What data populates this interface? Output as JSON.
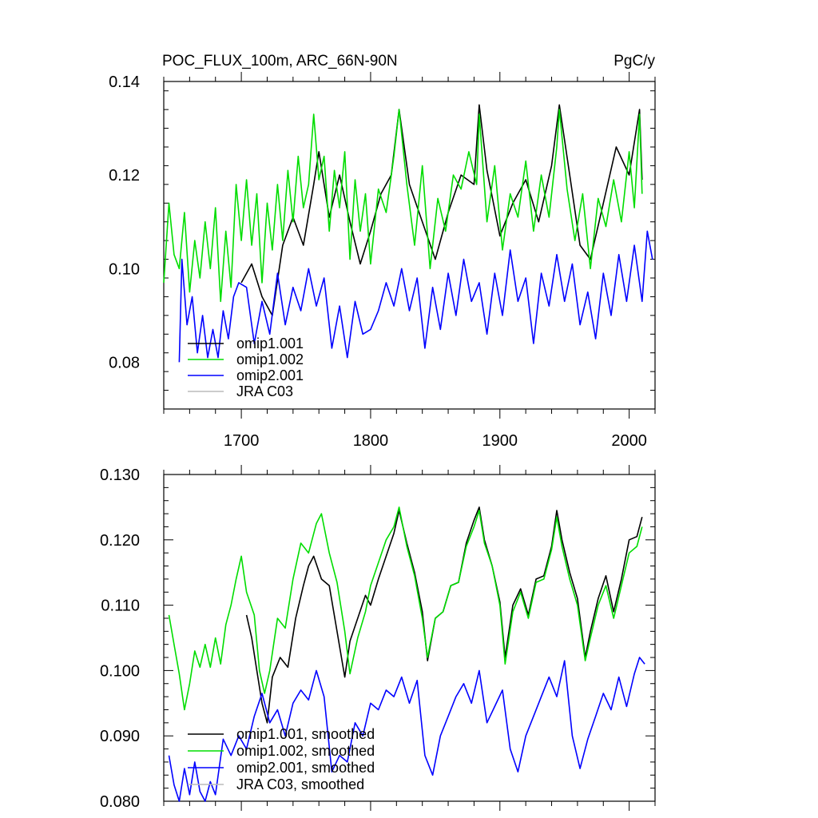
{
  "figure_title": "POC_FLUX_100m, ARC_66N-90N",
  "units": "PgC/y",
  "chart_data": [
    {
      "type": "line",
      "xlim": [
        1640,
        2020
      ],
      "ylim": [
        0.07,
        0.14
      ],
      "y_major_ticks": [
        0.08,
        0.1,
        0.12,
        0.14
      ],
      "y_tick_labels": [
        "0.08",
        "0.10",
        "0.12",
        "0.14"
      ],
      "x_tick_labels": [
        "1700",
        "1800",
        "1900",
        "2000"
      ],
      "x_major_ticks": [
        1700,
        1800,
        1900,
        2000
      ],
      "legend_position": "lower-left",
      "series": [
        {
          "name": "omip1.001",
          "color": "#000000",
          "x": [
            1700,
            1708,
            1716,
            1724,
            1732,
            1740,
            1748,
            1756,
            1760,
            1768,
            1776,
            1784,
            1792,
            1800,
            1808,
            1816,
            1822,
            1830,
            1840,
            1850,
            1860,
            1870,
            1880,
            1884,
            1890,
            1900,
            1910,
            1920,
            1930,
            1940,
            1946,
            1954,
            1962,
            1970,
            1980,
            1990,
            2000,
            2008,
            2010
          ],
          "y": [
            0.097,
            0.101,
            0.094,
            0.09,
            0.105,
            0.111,
            0.105,
            0.118,
            0.125,
            0.111,
            0.12,
            0.11,
            0.101,
            0.108,
            0.116,
            0.12,
            0.134,
            0.118,
            0.11,
            0.102,
            0.112,
            0.12,
            0.118,
            0.135,
            0.121,
            0.107,
            0.114,
            0.119,
            0.11,
            0.122,
            0.135,
            0.12,
            0.105,
            0.102,
            0.114,
            0.126,
            0.12,
            0.134,
            0.119
          ]
        },
        {
          "name": "omip1.002",
          "color": "#00dd00",
          "x": [
            1640,
            1644,
            1648,
            1652,
            1656,
            1660,
            1664,
            1668,
            1672,
            1676,
            1680,
            1684,
            1688,
            1692,
            1696,
            1700,
            1704,
            1708,
            1712,
            1716,
            1720,
            1724,
            1728,
            1732,
            1736,
            1740,
            1744,
            1748,
            1752,
            1756,
            1760,
            1764,
            1768,
            1772,
            1776,
            1780,
            1784,
            1788,
            1792,
            1796,
            1800,
            1806,
            1812,
            1818,
            1822,
            1828,
            1834,
            1840,
            1846,
            1852,
            1858,
            1864,
            1870,
            1876,
            1882,
            1884,
            1890,
            1896,
            1902,
            1908,
            1914,
            1920,
            1926,
            1932,
            1938,
            1944,
            1946,
            1952,
            1958,
            1964,
            1970,
            1976,
            1982,
            1988,
            1994,
            2000,
            2004,
            2008,
            2010
          ],
          "y": [
            0.097,
            0.114,
            0.103,
            0.1,
            0.112,
            0.095,
            0.106,
            0.098,
            0.11,
            0.1,
            0.113,
            0.093,
            0.108,
            0.096,
            0.118,
            0.106,
            0.119,
            0.105,
            0.116,
            0.097,
            0.114,
            0.104,
            0.118,
            0.106,
            0.121,
            0.11,
            0.124,
            0.113,
            0.118,
            0.133,
            0.119,
            0.124,
            0.108,
            0.121,
            0.113,
            0.125,
            0.102,
            0.119,
            0.108,
            0.116,
            0.101,
            0.117,
            0.112,
            0.124,
            0.134,
            0.118,
            0.105,
            0.122,
            0.1,
            0.115,
            0.108,
            0.12,
            0.117,
            0.125,
            0.118,
            0.133,
            0.11,
            0.122,
            0.104,
            0.116,
            0.111,
            0.123,
            0.108,
            0.12,
            0.111,
            0.126,
            0.134,
            0.117,
            0.106,
            0.116,
            0.1,
            0.115,
            0.109,
            0.119,
            0.11,
            0.125,
            0.113,
            0.133,
            0.116
          ]
        },
        {
          "name": "omip2.001",
          "color": "#0000ff",
          "x": [
            1652,
            1654,
            1658,
            1662,
            1666,
            1670,
            1674,
            1678,
            1682,
            1686,
            1690,
            1694,
            1698,
            1704,
            1710,
            1716,
            1722,
            1728,
            1734,
            1740,
            1746,
            1752,
            1758,
            1764,
            1770,
            1776,
            1782,
            1788,
            1794,
            1800,
            1806,
            1812,
            1818,
            1824,
            1830,
            1836,
            1842,
            1848,
            1854,
            1860,
            1866,
            1872,
            1878,
            1884,
            1890,
            1896,
            1902,
            1908,
            1914,
            1920,
            1926,
            1932,
            1938,
            1944,
            1950,
            1956,
            1962,
            1968,
            1974,
            1980,
            1986,
            1992,
            1998,
            2004,
            2010,
            2014,
            2018
          ],
          "y": [
            0.08,
            0.102,
            0.088,
            0.094,
            0.082,
            0.09,
            0.081,
            0.087,
            0.081,
            0.091,
            0.085,
            0.094,
            0.097,
            0.096,
            0.084,
            0.093,
            0.086,
            0.099,
            0.088,
            0.096,
            0.091,
            0.1,
            0.092,
            0.098,
            0.083,
            0.092,
            0.081,
            0.093,
            0.086,
            0.087,
            0.091,
            0.097,
            0.092,
            0.1,
            0.091,
            0.098,
            0.083,
            0.096,
            0.087,
            0.099,
            0.09,
            0.102,
            0.093,
            0.097,
            0.086,
            0.099,
            0.09,
            0.104,
            0.093,
            0.098,
            0.084,
            0.099,
            0.092,
            0.103,
            0.093,
            0.101,
            0.088,
            0.095,
            0.085,
            0.099,
            0.09,
            0.103,
            0.093,
            0.105,
            0.093,
            0.108,
            0.102
          ]
        },
        {
          "name": "JRA C03",
          "color": "#bbbbbb",
          "x": [],
          "y": []
        }
      ]
    },
    {
      "type": "line",
      "xlim": [
        1640,
        2020
      ],
      "ylim": [
        0.08,
        0.13
      ],
      "y_major_ticks": [
        0.08,
        0.09,
        0.1,
        0.11,
        0.12,
        0.13
      ],
      "y_tick_labels": [
        "0.080",
        "0.090",
        "0.100",
        "0.110",
        "0.120",
        "0.130"
      ],
      "x_major_ticks": [
        1700,
        1800,
        1900,
        2000
      ],
      "legend_position": "lower-left",
      "series": [
        {
          "name": "omip1.001, smoothed",
          "color": "#000000",
          "x": [
            1704,
            1708,
            1712,
            1716,
            1720,
            1724,
            1730,
            1736,
            1742,
            1748,
            1752,
            1756,
            1762,
            1768,
            1774,
            1780,
            1784,
            1790,
            1796,
            1800,
            1806,
            1812,
            1818,
            1822,
            1828,
            1834,
            1840,
            1844,
            1850,
            1856,
            1862,
            1868,
            1874,
            1880,
            1884,
            1888,
            1894,
            1900,
            1904,
            1910,
            1916,
            1922,
            1928,
            1934,
            1940,
            1944,
            1948,
            1954,
            1960,
            1966,
            1970,
            1976,
            1982,
            1988,
            1994,
            2000,
            2006,
            2010
          ],
          "y": [
            0.1085,
            0.105,
            0.1,
            0.095,
            0.092,
            0.099,
            0.102,
            0.1005,
            0.108,
            0.113,
            0.116,
            0.1175,
            0.114,
            0.113,
            0.106,
            0.099,
            0.1045,
            0.108,
            0.1115,
            0.11,
            0.114,
            0.1175,
            0.121,
            0.1245,
            0.1195,
            0.115,
            0.109,
            0.1015,
            0.108,
            0.109,
            0.113,
            0.1135,
            0.1195,
            0.123,
            0.125,
            0.12,
            0.116,
            0.1105,
            0.102,
            0.11,
            0.1125,
            0.1085,
            0.114,
            0.1145,
            0.119,
            0.1245,
            0.12,
            0.115,
            0.111,
            0.102,
            0.106,
            0.111,
            0.1145,
            0.109,
            0.114,
            0.12,
            0.1205,
            0.1235
          ]
        },
        {
          "name": "omip1.002, smoothed",
          "color": "#00dd00",
          "x": [
            1644,
            1648,
            1652,
            1656,
            1660,
            1664,
            1668,
            1672,
            1676,
            1680,
            1684,
            1688,
            1692,
            1696,
            1700,
            1704,
            1710,
            1714,
            1718,
            1722,
            1728,
            1734,
            1740,
            1746,
            1752,
            1758,
            1762,
            1768,
            1774,
            1780,
            1784,
            1790,
            1796,
            1800,
            1806,
            1812,
            1818,
            1822,
            1828,
            1834,
            1840,
            1844,
            1850,
            1856,
            1862,
            1868,
            1874,
            1880,
            1884,
            1888,
            1894,
            1900,
            1904,
            1910,
            1916,
            1922,
            1928,
            1934,
            1940,
            1944,
            1948,
            1954,
            1960,
            1966,
            1970,
            1976,
            1982,
            1988,
            1994,
            2000,
            2006,
            2010
          ],
          "y": [
            0.1085,
            0.104,
            0.0995,
            0.094,
            0.098,
            0.103,
            0.1005,
            0.104,
            0.1005,
            0.105,
            0.101,
            0.107,
            0.11,
            0.114,
            0.1175,
            0.112,
            0.1085,
            0.1,
            0.0965,
            0.1,
            0.108,
            0.1065,
            0.114,
            0.1195,
            0.118,
            0.1225,
            0.124,
            0.118,
            0.1135,
            0.106,
            0.0995,
            0.105,
            0.109,
            0.113,
            0.1165,
            0.12,
            0.122,
            0.125,
            0.119,
            0.1145,
            0.108,
            0.102,
            0.108,
            0.109,
            0.113,
            0.1135,
            0.119,
            0.122,
            0.1245,
            0.1195,
            0.116,
            0.11,
            0.101,
            0.109,
            0.112,
            0.108,
            0.1135,
            0.114,
            0.1185,
            0.1235,
            0.119,
            0.114,
            0.11,
            0.1015,
            0.105,
            0.11,
            0.113,
            0.108,
            0.113,
            0.118,
            0.119,
            0.122
          ]
        },
        {
          "name": "omip2.001, smoothed",
          "color": "#0000ff",
          "x": [
            1644,
            1648,
            1652,
            1656,
            1660,
            1664,
            1668,
            1672,
            1676,
            1680,
            1686,
            1692,
            1698,
            1704,
            1710,
            1716,
            1722,
            1728,
            1734,
            1740,
            1746,
            1752,
            1758,
            1764,
            1770,
            1776,
            1782,
            1788,
            1794,
            1800,
            1806,
            1812,
            1818,
            1824,
            1830,
            1836,
            1842,
            1848,
            1854,
            1860,
            1866,
            1872,
            1878,
            1884,
            1890,
            1896,
            1902,
            1908,
            1914,
            1920,
            1926,
            1932,
            1938,
            1944,
            1950,
            1956,
            1962,
            1968,
            1974,
            1980,
            1986,
            1992,
            1998,
            2004,
            2008,
            2012
          ],
          "y": [
            0.087,
            0.0825,
            0.08,
            0.085,
            0.081,
            0.086,
            0.0815,
            0.08,
            0.083,
            0.081,
            0.0895,
            0.087,
            0.09,
            0.088,
            0.093,
            0.0965,
            0.092,
            0.094,
            0.09,
            0.095,
            0.097,
            0.0955,
            0.1,
            0.096,
            0.0845,
            0.087,
            0.086,
            0.092,
            0.09,
            0.095,
            0.094,
            0.097,
            0.096,
            0.099,
            0.095,
            0.0985,
            0.087,
            0.084,
            0.09,
            0.093,
            0.096,
            0.098,
            0.095,
            0.1,
            0.092,
            0.0945,
            0.097,
            0.088,
            0.0845,
            0.09,
            0.093,
            0.096,
            0.099,
            0.096,
            0.1015,
            0.09,
            0.085,
            0.0895,
            0.093,
            0.0965,
            0.094,
            0.099,
            0.0945,
            0.0995,
            0.102,
            0.101
          ]
        },
        {
          "name": "JRA C03, smoothed",
          "color": "#bbbbbb",
          "x": [],
          "y": []
        }
      ]
    }
  ]
}
